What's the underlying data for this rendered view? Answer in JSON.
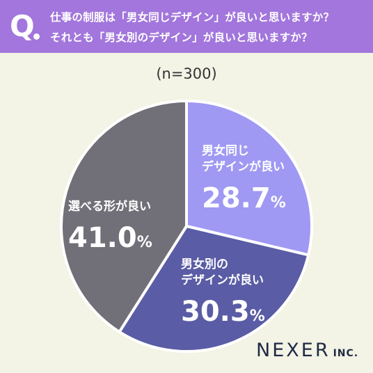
{
  "question": {
    "mark": "Q",
    "line1": "仕事の制服は「男女同じデザイン」が良いと思いますか？",
    "line2": "それとも「男女別のデザイン」が良いと思いますか？"
  },
  "sample_size": "(n=300)",
  "chart_data": {
    "type": "pie",
    "title": "",
    "slices": [
      {
        "label_lines": [
          "男女同じ",
          "デザインが良い"
        ],
        "value": 28.7,
        "display": "28.7",
        "color": "#9f99f3"
      },
      {
        "label_lines": [
          "男女別の",
          "デザインが良い"
        ],
        "value": 30.3,
        "display": "30.3",
        "color": "#5a5ca5"
      },
      {
        "label_lines": [
          "選べる形が良い"
        ],
        "value": 41.0,
        "display": "41.0",
        "color": "#717078"
      }
    ],
    "unit": "%",
    "start": "12 o'clock",
    "direction": "clockwise"
  },
  "logo": {
    "main": "NEXER",
    "sub": "INC."
  },
  "colors": {
    "header": "#a276dc",
    "background": "#f3f3e6",
    "logo": "#1f2a44"
  }
}
